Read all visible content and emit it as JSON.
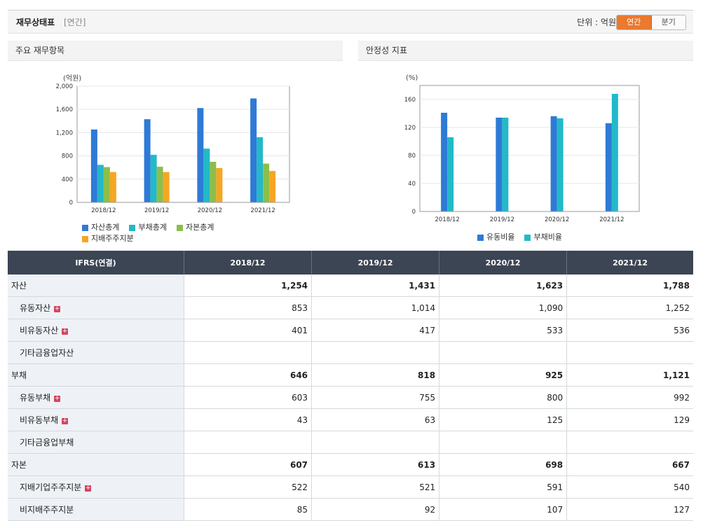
{
  "header": {
    "title": "재무상태표",
    "period_tag": "[연간]",
    "unit_label": "단위 : 억원",
    "toggle_annual": "연간",
    "toggle_quarter": "분기"
  },
  "left_panel": {
    "title": "주요 재무항목",
    "unit": "(억원)"
  },
  "right_panel": {
    "title": "안정성 지표",
    "unit": "(%)"
  },
  "chart_data": [
    {
      "type": "bar",
      "categories": [
        "2018/12",
        "2019/12",
        "2020/12",
        "2021/12"
      ],
      "ylim": [
        0,
        2000
      ],
      "yticks": [
        "0",
        "400",
        "800",
        "1,200",
        "1,600",
        "2,000"
      ],
      "ylabel": "(억원)",
      "grid": true,
      "series": [
        {
          "name": "자산총계",
          "color": "#2e7ad6",
          "values": [
            1254,
            1431,
            1623,
            1788
          ]
        },
        {
          "name": "부채총계",
          "color": "#22b9c9",
          "values": [
            646,
            818,
            925,
            1121
          ]
        },
        {
          "name": "자본총계",
          "color": "#8cbe4a",
          "values": [
            607,
            613,
            698,
            667
          ]
        },
        {
          "name": "지배주주지분",
          "color": "#f5a623",
          "values": [
            522,
            521,
            591,
            540
          ]
        }
      ]
    },
    {
      "type": "bar",
      "categories": [
        "2018/12",
        "2019/12",
        "2020/12",
        "2021/12"
      ],
      "ylim": [
        0,
        180
      ],
      "yticks": [
        "0",
        "40",
        "80",
        "120",
        "160"
      ],
      "ylabel": "(%)",
      "grid": true,
      "series": [
        {
          "name": "유동비율",
          "color": "#2e7ad6",
          "values": [
            141,
            134,
            136,
            126
          ]
        },
        {
          "name": "부채비율",
          "color": "#22b9c9",
          "values": [
            106,
            134,
            133,
            168
          ]
        }
      ]
    }
  ],
  "table": {
    "header": [
      "IFRS(연결)",
      "2018/12",
      "2019/12",
      "2020/12",
      "2021/12"
    ],
    "rows": [
      {
        "label": "자산",
        "indent": false,
        "bold": true,
        "plus": false,
        "values": [
          "1,254",
          "1,431",
          "1,623",
          "1,788"
        ]
      },
      {
        "label": "유동자산",
        "indent": true,
        "bold": false,
        "plus": true,
        "values": [
          "853",
          "1,014",
          "1,090",
          "1,252"
        ]
      },
      {
        "label": "비유동자산",
        "indent": true,
        "bold": false,
        "plus": true,
        "values": [
          "401",
          "417",
          "533",
          "536"
        ]
      },
      {
        "label": "기타금융업자산",
        "indent": true,
        "bold": false,
        "plus": false,
        "values": [
          "",
          "",
          "",
          ""
        ]
      },
      {
        "label": "부채",
        "indent": false,
        "bold": true,
        "plus": false,
        "values": [
          "646",
          "818",
          "925",
          "1,121"
        ]
      },
      {
        "label": "유동부채",
        "indent": true,
        "bold": false,
        "plus": true,
        "values": [
          "603",
          "755",
          "800",
          "992"
        ]
      },
      {
        "label": "비유동부채",
        "indent": true,
        "bold": false,
        "plus": true,
        "values": [
          "43",
          "63",
          "125",
          "129"
        ]
      },
      {
        "label": "기타금융업부채",
        "indent": true,
        "bold": false,
        "plus": false,
        "values": [
          "",
          "",
          "",
          ""
        ]
      },
      {
        "label": "자본",
        "indent": false,
        "bold": true,
        "plus": false,
        "values": [
          "607",
          "613",
          "698",
          "667"
        ]
      },
      {
        "label": "지배기업주주지분",
        "indent": true,
        "bold": false,
        "plus": true,
        "values": [
          "522",
          "521",
          "591",
          "540"
        ]
      },
      {
        "label": "비지배주주지분",
        "indent": true,
        "bold": false,
        "plus": false,
        "values": [
          "85",
          "92",
          "107",
          "127"
        ]
      }
    ]
  }
}
